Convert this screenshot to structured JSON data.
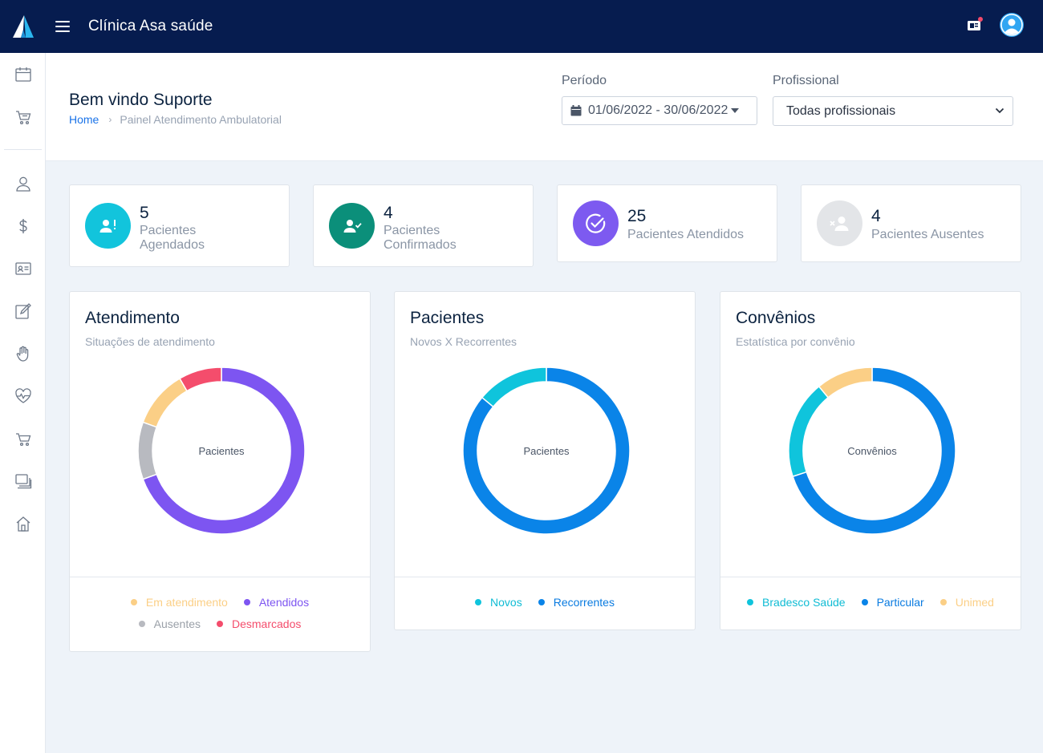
{
  "app": {
    "title": "Clínica Asa saúde"
  },
  "header": {
    "welcome": "Bem vindo Suporte",
    "breadcrumb": {
      "home": "Home",
      "current": "Painel Atendimento Ambulatorial"
    },
    "periodo": {
      "label": "Período",
      "value": "01/06/2022 - 30/06/2022"
    },
    "profissional": {
      "label": "Profissional",
      "value": "Todas profissionais"
    }
  },
  "sidebar": {
    "icons": [
      "calendar-icon",
      "cart-icon",
      "user-icon",
      "dollar-icon",
      "id-card-icon",
      "edit-icon",
      "hand-icon",
      "heart-pulse-icon",
      "cart-icon",
      "copy-icon",
      "home-icon"
    ]
  },
  "stats": [
    {
      "value": "5",
      "label_line1": "Pacientes",
      "label_line2": "Agendados",
      "color": "#12c4dc",
      "icon": "user-alert-icon"
    },
    {
      "value": "4",
      "label_line1": "Pacientes",
      "label_line2": "Confirmados",
      "color": "#0b8f7a",
      "icon": "user-check-icon"
    },
    {
      "value": "25",
      "label": "Pacientes Atendidos",
      "color": "#7d5af0",
      "icon": "check-circle-icon"
    },
    {
      "value": "4",
      "label": "Pacientes Ausentes",
      "color": "#e3e5e8",
      "icon": "user-x-icon"
    }
  ],
  "charts": [
    {
      "title": "Atendimento",
      "subtitle": "Situações de atendimento",
      "center_label": "Pacientes",
      "chart_data": {
        "type": "pie",
        "categories": [
          "Atendidos",
          "Ausentes",
          "Em atendimento",
          "Desmarcados"
        ],
        "values": [
          25,
          4,
          4,
          3
        ],
        "colors": [
          "#7d55f1",
          "#b8bac0",
          "#fbcf86",
          "#f44d6c"
        ]
      },
      "legend": [
        {
          "label": "Em atendimento",
          "color": "#fbcf86"
        },
        {
          "label": "Atendidos",
          "color": "#7d55f1"
        },
        {
          "label": "Ausentes",
          "color": "#b8bac0"
        },
        {
          "label": "Desmarcados",
          "color": "#f44d6c"
        }
      ]
    },
    {
      "title": "Pacientes",
      "subtitle": "Novos X Recorrentes",
      "center_label": "Pacientes",
      "chart_data": {
        "type": "pie",
        "categories": [
          "Recorrentes",
          "Novos"
        ],
        "values": [
          86,
          14
        ],
        "colors": [
          "#0a84e8",
          "#0fc4dc"
        ]
      },
      "legend": [
        {
          "label": "Novos",
          "color": "#0fc4dc"
        },
        {
          "label": "Recorrentes",
          "color": "#0a84e8"
        }
      ]
    },
    {
      "title": "Convênios",
      "subtitle": "Estatística por convênio",
      "center_label": "Convênios",
      "chart_data": {
        "type": "pie",
        "categories": [
          "Particular",
          "Bradesco Saúde",
          "Unimed"
        ],
        "values": [
          70,
          19,
          11
        ],
        "colors": [
          "#0a84e8",
          "#0fc4dc",
          "#fbcf86"
        ]
      },
      "legend": [
        {
          "label": "Bradesco Saúde",
          "color": "#0fc4dc"
        },
        {
          "label": "Particular",
          "color": "#0a84e8"
        },
        {
          "label": "Unimed",
          "color": "#fbcf86"
        }
      ]
    }
  ]
}
